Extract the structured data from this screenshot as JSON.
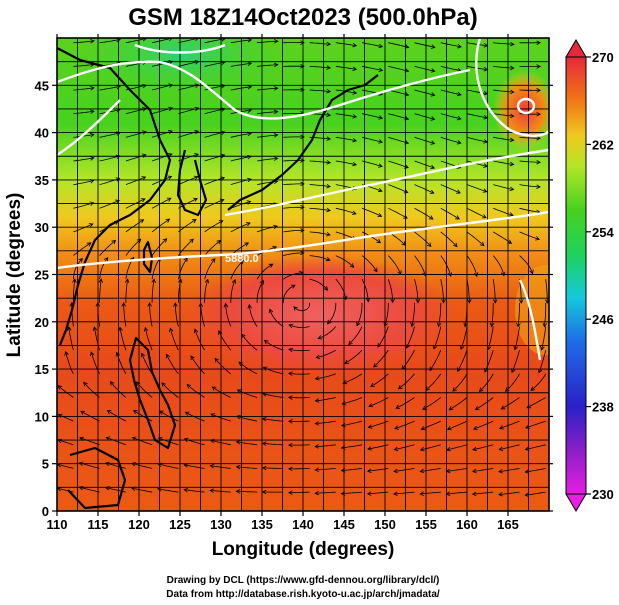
{
  "title": "GSM 18Z14Oct2023 (500.0hPa)",
  "xaxis": {
    "label": "Longitude (degrees)",
    "range": [
      110,
      170
    ],
    "ticks": [
      "110",
      "115",
      "120",
      "125",
      "130",
      "135",
      "140",
      "145",
      "150",
      "155",
      "160",
      "165"
    ]
  },
  "yaxis": {
    "label": "Latitude (degrees)",
    "range": [
      0,
      50
    ],
    "ticks": [
      "0",
      "5",
      "10",
      "15",
      "20",
      "25",
      "30",
      "35",
      "40",
      "45"
    ]
  },
  "colorbar": {
    "ticks": [
      "230",
      "238",
      "246",
      "254",
      "262",
      "270"
    ],
    "range": [
      230,
      270
    ],
    "colors": [
      "#e81ee0",
      "#8a1ec8",
      "#2a20c8",
      "#1e6ee6",
      "#16c8dc",
      "#1ed25a",
      "#46d21e",
      "#b4e628",
      "#f0c81e",
      "#f07814",
      "#eb3c14",
      "#e6283c"
    ]
  },
  "contour_label": "5880.0",
  "credits": [
    "Drawing by DCL (https://www.gfd-dennou.org/library/dcl/)",
    "Data from http://database.rish.kyoto-u.ac.jp/arch/jmadata/"
  ],
  "chart_data": {
    "type": "heatmap",
    "title": "GSM 18Z14Oct2023 (500.0hPa)",
    "xlabel": "Longitude (degrees)",
    "ylabel": "Latitude (degrees)",
    "xlim": [
      110,
      170
    ],
    "ylim": [
      0,
      50
    ],
    "zlim": [
      230,
      270
    ],
    "grid": true,
    "overlays": [
      "streamlines",
      "coastlines",
      "height contours"
    ],
    "temperature_field_samples": [
      {
        "lon": 115,
        "lat": 45,
        "value": 254
      },
      {
        "lon": 130,
        "lat": 48,
        "value": 250
      },
      {
        "lon": 145,
        "lat": 45,
        "value": 254
      },
      {
        "lon": 160,
        "lat": 45,
        "value": 258
      },
      {
        "lon": 165,
        "lat": 42,
        "value": 263
      },
      {
        "lon": 125,
        "lat": 35,
        "value": 257
      },
      {
        "lon": 140,
        "lat": 35,
        "value": 259
      },
      {
        "lon": 160,
        "lat": 35,
        "value": 261
      },
      {
        "lon": 130,
        "lat": 28,
        "value": 264
      },
      {
        "lon": 140,
        "lat": 24,
        "value": 269
      },
      {
        "lon": 160,
        "lat": 25,
        "value": 265
      },
      {
        "lon": 120,
        "lat": 15,
        "value": 267
      },
      {
        "lon": 140,
        "lat": 10,
        "value": 266
      },
      {
        "lon": 160,
        "lat": 10,
        "value": 266
      },
      {
        "lon": 150,
        "lat": 2,
        "value": 266
      }
    ]
  }
}
